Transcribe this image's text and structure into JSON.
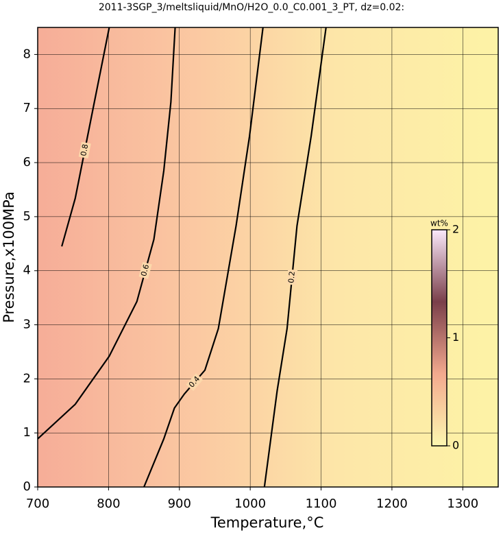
{
  "chart_data": {
    "type": "contour",
    "title": "2011-3SGP_3/meltsliquid/MnO/H2O_0.0_C0.001_3_PT, dz=0.02:",
    "xlabel": "Temperature,°C",
    "ylabel": "Pressure,x100MPa",
    "xlim": [
      700,
      1350
    ],
    "ylim": [
      0,
      8.5
    ],
    "xticks": [
      700,
      800,
      900,
      1000,
      1100,
      1200,
      1300
    ],
    "yticks": [
      0,
      1,
      2,
      3,
      4,
      5,
      6,
      7,
      8
    ],
    "grid": true,
    "contours": [
      {
        "level": 0.8,
        "x": [
          734,
          753,
          780,
          801
        ],
        "y": [
          4.45,
          5.34,
          7.12,
          8.5
        ]
      },
      {
        "level": 0.6,
        "x": [
          700,
          753,
          801,
          840,
          864,
          878,
          888,
          894
        ],
        "y": [
          0.89,
          1.53,
          2.42,
          3.43,
          4.58,
          5.85,
          7.12,
          8.5
        ]
      },
      {
        "level": 0.4,
        "x": [
          850,
          878,
          893,
          907,
          936,
          955,
          980,
          999,
          1018
        ],
        "y": [
          0,
          0.89,
          1.46,
          1.72,
          2.16,
          2.93,
          4.83,
          6.49,
          8.5
        ]
      },
      {
        "level": 0.2,
        "x": [
          1020,
          1038,
          1052,
          1066,
          1086,
          1107
        ],
        "y": [
          0,
          1.78,
          2.93,
          4.83,
          6.49,
          8.5
        ]
      }
    ],
    "colorbar": {
      "label": "wt%",
      "lim": [
        0,
        2
      ],
      "ticks": [
        0,
        1,
        2
      ],
      "colors": [
        "#fdf7b0",
        "#f3a98e",
        "#7a3f4a",
        "#fbe9fb"
      ]
    }
  }
}
